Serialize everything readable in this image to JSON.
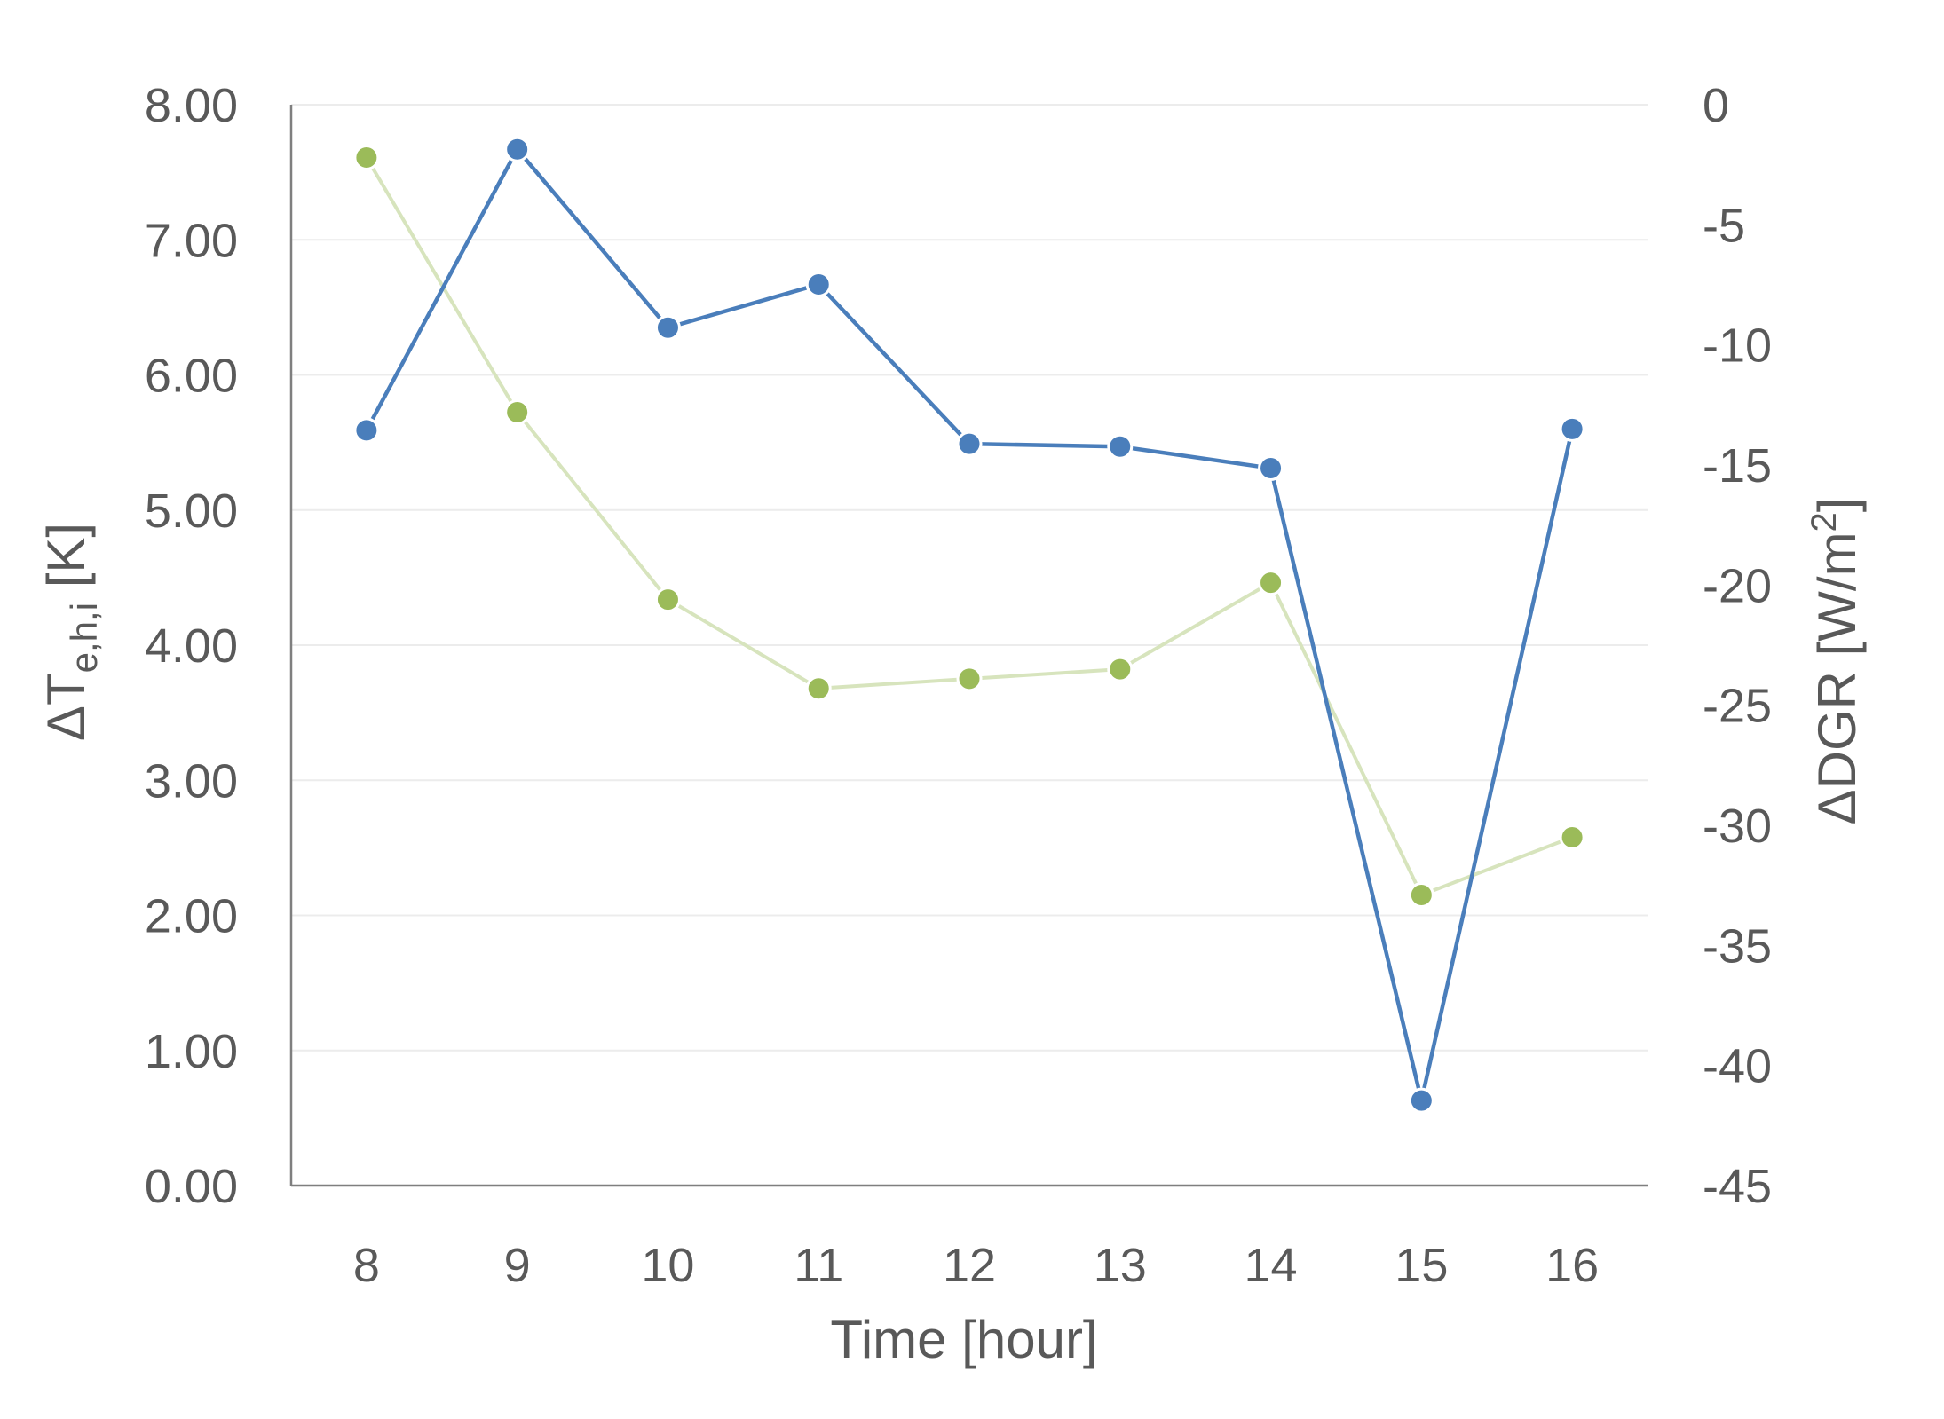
{
  "chart_data": {
    "type": "line",
    "x": [
      8,
      9,
      10,
      11,
      12,
      13,
      14,
      15,
      16
    ],
    "xlabel": "Time [hour]",
    "ylabel_left": {
      "prefix": "ΔT",
      "subscript": "e,h,i",
      "suffix": " [K]"
    },
    "ylabel_right": {
      "prefix": "ΔDGR [W/m",
      "superscript": "2",
      "suffix": "]"
    },
    "y_left": {
      "lim": [
        0,
        8
      ],
      "ticks": [
        "0.00",
        "1.00",
        "2.00",
        "3.00",
        "4.00",
        "5.00",
        "6.00",
        "7.00",
        "8.00"
      ]
    },
    "y_right": {
      "lim": [
        -45,
        0
      ],
      "ticks": [
        "-45",
        "-40",
        "-35",
        "-30",
        "-25",
        "-20",
        "-15",
        "-10",
        "-5",
        "0"
      ]
    },
    "x_ticks": [
      "8",
      "9",
      "10",
      "11",
      "12",
      "13",
      "14",
      "15",
      "16"
    ],
    "grid": true,
    "series": [
      {
        "axis": "left",
        "color": "#4a7ebb",
        "values": [
          5.59,
          7.67,
          6.35,
          6.67,
          5.49,
          5.47,
          5.31,
          0.63,
          5.6
        ]
      },
      {
        "axis": "right",
        "color": "#9bbb59",
        "line_color": "#d7e4bd",
        "values": [
          -2.2,
          -12.8,
          -20.6,
          -24.3,
          -23.9,
          -23.5,
          -19.9,
          -32.9,
          -30.5
        ]
      }
    ]
  }
}
